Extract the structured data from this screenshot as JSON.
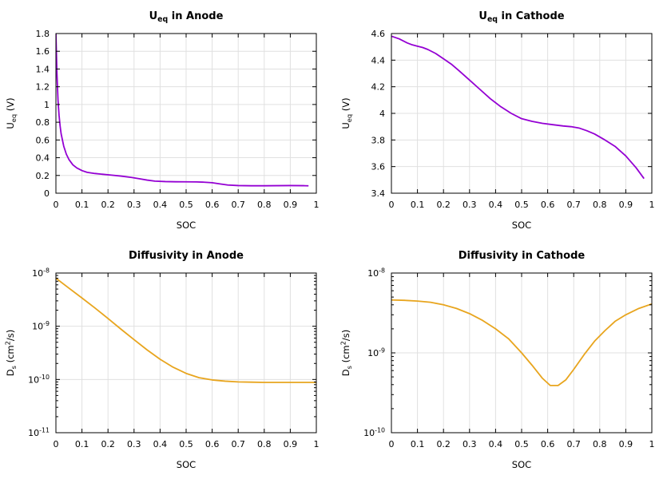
{
  "figure": {
    "background": "#ffffff",
    "grid_color": "#e0e0e0",
    "axis_color": "#000000"
  },
  "chart_data": [
    {
      "id": "ueq-anode",
      "type": "line",
      "title": "U_{eq} in Anode",
      "xlabel": "SOC",
      "ylabel": "U_{eq} (V)",
      "color": "#9400D3",
      "xscale": "linear",
      "yscale": "linear",
      "xlim": [
        0,
        1
      ],
      "ylim": [
        0,
        1.8
      ],
      "xticks": [
        0,
        0.1,
        0.2,
        0.3,
        0.4,
        0.5,
        0.6,
        0.7,
        0.8,
        0.9,
        1
      ],
      "xtick_labels": [
        "0",
        "0.1",
        "0.2",
        "0.3",
        "0.4",
        "0.5",
        "0.6",
        "0.7",
        "0.8",
        "0.9",
        "1"
      ],
      "yticks": [
        0,
        0.2,
        0.4,
        0.6,
        0.8,
        1,
        1.2,
        1.4,
        1.6,
        1.8
      ],
      "ytick_labels": [
        "0",
        "0.2",
        "0.4",
        "0.6",
        "0.8",
        "1",
        "1.2",
        "1.4",
        "1.6",
        "1.8"
      ],
      "grid": true,
      "x": [
        0,
        0.004,
        0.008,
        0.012,
        0.016,
        0.02,
        0.03,
        0.04,
        0.05,
        0.065,
        0.08,
        0.1,
        0.12,
        0.15,
        0.18,
        0.21,
        0.25,
        0.29,
        0.32,
        0.35,
        0.38,
        0.42,
        0.46,
        0.5,
        0.54,
        0.57,
        0.6,
        0.63,
        0.66,
        0.7,
        0.75,
        0.8,
        0.85,
        0.9,
        0.95,
        0.97
      ],
      "y": [
        1.8,
        1.35,
        1.05,
        0.88,
        0.76,
        0.67,
        0.53,
        0.44,
        0.38,
        0.32,
        0.285,
        0.255,
        0.235,
        0.222,
        0.213,
        0.205,
        0.193,
        0.178,
        0.163,
        0.148,
        0.136,
        0.131,
        0.129,
        0.128,
        0.127,
        0.124,
        0.118,
        0.105,
        0.092,
        0.086,
        0.084,
        0.084,
        0.085,
        0.086,
        0.085,
        0.083
      ]
    },
    {
      "id": "ueq-cathode",
      "type": "line",
      "title": "U_{eq} in Cathode",
      "xlabel": "SOC",
      "ylabel": "U_{eq} (V)",
      "color": "#9400D3",
      "xscale": "linear",
      "yscale": "linear",
      "xlim": [
        0,
        1
      ],
      "ylim": [
        3.4,
        4.6
      ],
      "xticks": [
        0,
        0.1,
        0.2,
        0.3,
        0.4,
        0.5,
        0.6,
        0.7,
        0.8,
        0.9,
        1
      ],
      "xtick_labels": [
        "0",
        "0.1",
        "0.2",
        "0.3",
        "0.4",
        "0.5",
        "0.6",
        "0.7",
        "0.8",
        "0.9",
        "1"
      ],
      "yticks": [
        3.4,
        3.6,
        3.8,
        4,
        4.2,
        4.4,
        4.6
      ],
      "ytick_labels": [
        "3.4",
        "3.6",
        "3.8",
        "4",
        "4.2",
        "4.4",
        "4.6"
      ],
      "grid": true,
      "x": [
        0,
        0.03,
        0.06,
        0.08,
        0.1,
        0.12,
        0.14,
        0.17,
        0.2,
        0.23,
        0.26,
        0.3,
        0.34,
        0.38,
        0.42,
        0.46,
        0.5,
        0.54,
        0.58,
        0.62,
        0.66,
        0.69,
        0.72,
        0.75,
        0.78,
        0.82,
        0.86,
        0.9,
        0.94,
        0.97
      ],
      "y": [
        4.58,
        4.56,
        4.53,
        4.515,
        4.505,
        4.495,
        4.48,
        4.45,
        4.41,
        4.37,
        4.32,
        4.25,
        4.18,
        4.11,
        4.05,
        4.0,
        3.96,
        3.94,
        3.925,
        3.915,
        3.905,
        3.9,
        3.89,
        3.87,
        3.845,
        3.8,
        3.75,
        3.68,
        3.59,
        3.51
      ]
    },
    {
      "id": "diffusivity-anode",
      "type": "line",
      "title": "Diffusivity in Anode",
      "xlabel": "SOC",
      "ylabel": "D_{s} (cm^{2}/s)",
      "color": "#E8A51E",
      "xscale": "linear",
      "yscale": "log",
      "xlim": [
        0,
        1
      ],
      "ylim": [
        1e-11,
        1e-08
      ],
      "xticks": [
        0,
        0.1,
        0.2,
        0.3,
        0.4,
        0.5,
        0.6,
        0.7,
        0.8,
        0.9,
        1
      ],
      "xtick_labels": [
        "0",
        "0.1",
        "0.2",
        "0.3",
        "0.4",
        "0.5",
        "0.6",
        "0.7",
        "0.8",
        "0.9",
        "1"
      ],
      "yticks": [
        1e-11,
        1e-10,
        1e-09,
        1e-08
      ],
      "ytick_labels": [
        "10^{-11}",
        "10^{-10}",
        "10^{-9}",
        "10^{-8}"
      ],
      "grid": true,
      "x": [
        0,
        0.05,
        0.1,
        0.15,
        0.2,
        0.25,
        0.3,
        0.35,
        0.4,
        0.45,
        0.5,
        0.55,
        0.6,
        0.65,
        0.7,
        0.75,
        0.8,
        0.85,
        0.9,
        0.95,
        1
      ],
      "y": [
        8e-09,
        5.2e-09,
        3.4e-09,
        2.2e-09,
        1.4e-09,
        8.8e-10,
        5.6e-10,
        3.6e-10,
        2.4e-10,
        1.7e-10,
        1.3e-10,
        1.08e-10,
        9.8e-11,
        9.3e-11,
        9e-11,
        8.9e-11,
        8.8e-11,
        8.8e-11,
        8.8e-11,
        8.8e-11,
        8.8e-11
      ]
    },
    {
      "id": "diffusivity-cathode",
      "type": "line",
      "title": "Diffusivity in Cathode",
      "xlabel": "SOC",
      "ylabel": "D_{s} (cm^{2}/s)",
      "color": "#E8A51E",
      "xscale": "linear",
      "yscale": "log",
      "xlim": [
        0,
        1
      ],
      "ylim": [
        1e-10,
        1e-08
      ],
      "xticks": [
        0,
        0.1,
        0.2,
        0.3,
        0.4,
        0.5,
        0.6,
        0.7,
        0.8,
        0.9,
        1
      ],
      "xtick_labels": [
        "0",
        "0.1",
        "0.2",
        "0.3",
        "0.4",
        "0.5",
        "0.6",
        "0.7",
        "0.8",
        "0.9",
        "1"
      ],
      "yticks": [
        1e-10,
        1e-09,
        1e-08
      ],
      "ytick_labels": [
        "10^{-10}",
        "10^{-9}",
        "10^{-8}"
      ],
      "grid": true,
      "x": [
        0,
        0.05,
        0.1,
        0.15,
        0.2,
        0.25,
        0.3,
        0.35,
        0.4,
        0.45,
        0.5,
        0.54,
        0.58,
        0.61,
        0.64,
        0.67,
        0.7,
        0.74,
        0.78,
        0.82,
        0.86,
        0.9,
        0.95,
        1
      ],
      "y": [
        4.6e-09,
        4.55e-09,
        4.45e-09,
        4.3e-09,
        4e-09,
        3.6e-09,
        3.1e-09,
        2.55e-09,
        2e-09,
        1.5e-09,
        1e-09,
        7e-10,
        4.8e-10,
        3.9e-10,
        3.9e-10,
        4.6e-10,
        6.2e-10,
        9.5e-10,
        1.4e-09,
        1.9e-09,
        2.5e-09,
        3e-09,
        3.6e-09,
        4.1e-09
      ]
    }
  ]
}
